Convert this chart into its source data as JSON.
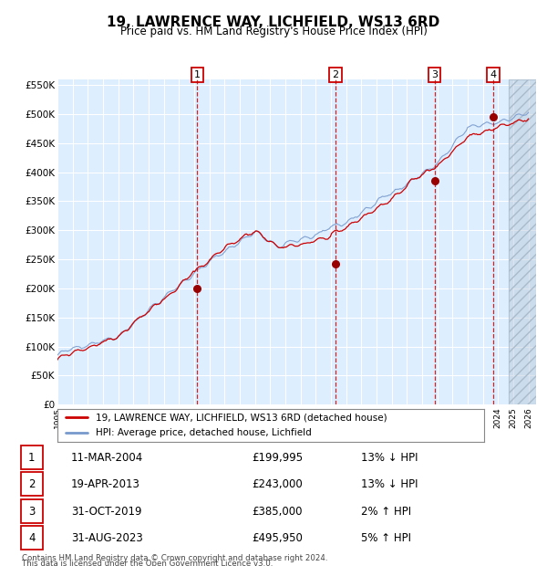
{
  "title": "19, LAWRENCE WAY, LICHFIELD, WS13 6RD",
  "subtitle": "Price paid vs. HM Land Registry's House Price Index (HPI)",
  "background_color": "#ddeeff",
  "red_line_color": "#cc0000",
  "blue_line_color": "#7799cc",
  "grid_color": "#ffffff",
  "ylim": [
    0,
    560000
  ],
  "yticks": [
    0,
    50000,
    100000,
    150000,
    200000,
    250000,
    300000,
    350000,
    400000,
    450000,
    500000,
    550000
  ],
  "ytick_labels": [
    "£0",
    "£50K",
    "£100K",
    "£150K",
    "£200K",
    "£250K",
    "£300K",
    "£350K",
    "£400K",
    "£450K",
    "£500K",
    "£550K"
  ],
  "xticks": [
    1995,
    1996,
    1997,
    1998,
    1999,
    2000,
    2001,
    2002,
    2003,
    2004,
    2005,
    2006,
    2007,
    2008,
    2009,
    2010,
    2011,
    2012,
    2013,
    2014,
    2015,
    2016,
    2017,
    2018,
    2019,
    2020,
    2021,
    2022,
    2023,
    2024,
    2025,
    2026
  ],
  "sales": [
    {
      "num": 1,
      "date": "11-MAR-2004",
      "year": 2004.19,
      "price": 199995,
      "pct": "13%",
      "dir": "↓"
    },
    {
      "num": 2,
      "date": "19-APR-2013",
      "year": 2013.29,
      "price": 243000,
      "pct": "13%",
      "dir": "↓"
    },
    {
      "num": 3,
      "date": "31-OCT-2019",
      "year": 2019.83,
      "price": 385000,
      "pct": "2%",
      "dir": "↑"
    },
    {
      "num": 4,
      "date": "31-AUG-2023",
      "year": 2023.67,
      "price": 495950,
      "pct": "5%",
      "dir": "↑"
    }
  ],
  "hatch_start": 2024.67,
  "legend_line1": "19, LAWRENCE WAY, LICHFIELD, WS13 6RD (detached house)",
  "legend_line2": "HPI: Average price, detached house, Lichfield",
  "footer1": "Contains HM Land Registry data © Crown copyright and database right 2024.",
  "footer2": "This data is licensed under the Open Government Licence v3.0."
}
